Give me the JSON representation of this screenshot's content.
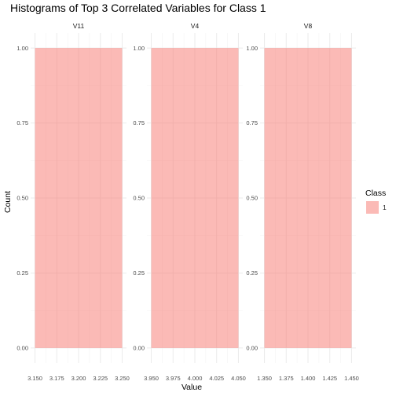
{
  "chart_data": {
    "type": "bar",
    "title": "Histograms of Top 3 Correlated Variables for Class 1",
    "xlabel": "Value",
    "ylabel": "Count",
    "ylim": [
      0,
      1
    ],
    "y_ticks": [
      "0.00",
      "0.25",
      "0.50",
      "0.75",
      "1.00"
    ],
    "y_tick_values": [
      0,
      0.25,
      0.5,
      0.75,
      1
    ],
    "grid": true,
    "legend": {
      "title": "Class",
      "position": "right",
      "entries": [
        {
          "label": "1",
          "color": "#F8766D"
        }
      ]
    },
    "fill_color": "#F8766D",
    "fill_opacity": 0.5,
    "panels": [
      {
        "name": "V11",
        "xlim": [
          3.15,
          3.25
        ],
        "x_ticks": [
          "3.150",
          "3.175",
          "3.200",
          "3.225",
          "3.250"
        ],
        "x_tick_values": [
          3.15,
          3.175,
          3.2,
          3.225,
          3.25
        ],
        "bins": [
          {
            "x0": 3.15,
            "x1": 3.25,
            "count": 1
          }
        ]
      },
      {
        "name": "V4",
        "xlim": [
          3.95,
          4.05
        ],
        "x_ticks": [
          "3.950",
          "3.975",
          "4.000",
          "4.025",
          "4.050"
        ],
        "x_tick_values": [
          3.95,
          3.975,
          4.0,
          4.025,
          4.05
        ],
        "bins": [
          {
            "x0": 3.95,
            "x1": 4.05,
            "count": 1
          }
        ]
      },
      {
        "name": "V8",
        "xlim": [
          1.35,
          1.45
        ],
        "x_ticks": [
          "1.350",
          "1.375",
          "1.400",
          "1.425",
          "1.450"
        ],
        "x_tick_values": [
          1.35,
          1.375,
          1.4,
          1.425,
          1.45
        ],
        "bins": [
          {
            "x0": 1.35,
            "x1": 1.45,
            "count": 1
          }
        ]
      }
    ]
  }
}
